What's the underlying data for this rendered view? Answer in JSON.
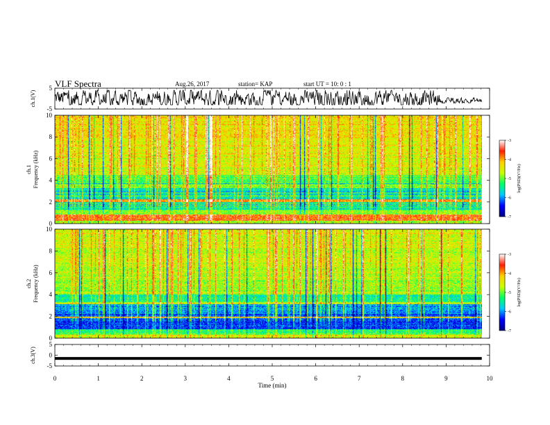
{
  "header": {
    "title": "VLF Spectra",
    "date": "Aug.26, 2017",
    "station": "station= KAP",
    "start": "start  UT =   10: 0  : 1"
  },
  "chart_data": [
    {
      "type": "line",
      "name": "ch1-waveform",
      "ylabel": "ch.1(V)",
      "ylim": [
        -5,
        5
      ],
      "yticks": [
        "5",
        "-5"
      ],
      "xlim": [
        0,
        10
      ],
      "y_range_observed": [
        -3,
        4
      ]
    },
    {
      "type": "heatmap",
      "name": "ch1-spectrogram",
      "ylabel": "ch.1\nFrequency  (kHz)",
      "ylim": [
        0,
        10
      ],
      "yticks": [
        "10",
        "8",
        "6",
        "4",
        "2",
        "0"
      ],
      "xlim": [
        0,
        10
      ],
      "colorbar": {
        "label": "log(PSD)(V²/Hz)",
        "range": [
          -7,
          -3
        ],
        "ticks": [
          "-3",
          "-4",
          "-5",
          "-6",
          "-7"
        ],
        "colors": [
          "#000080",
          "#0000ff",
          "#00c8ff",
          "#00ff66",
          "#c8ff00",
          "#ffd000",
          "#ff2000",
          "#ffffff"
        ]
      },
      "features": {
        "strong_band_khz": [
          0.2,
          0.8
        ],
        "line_khz": [
          2.0,
          2.3,
          5.5
        ],
        "high_energy_above_khz": 4.5
      }
    },
    {
      "type": "heatmap",
      "name": "ch2-spectrogram",
      "ylabel": "ch.2\nFrequency  (kHz)",
      "ylim": [
        0,
        10
      ],
      "yticks": [
        "10",
        "8",
        "6",
        "4",
        "2",
        "0"
      ],
      "xlim": [
        0,
        10
      ],
      "colorbar": {
        "label": "log(PSD)(V²/Hz)",
        "range": [
          -7,
          -3
        ],
        "ticks": [
          "-3",
          "-4",
          "-5",
          "-6",
          "-7"
        ],
        "colors": [
          "#000080",
          "#0000ff",
          "#00c8ff",
          "#00ff66",
          "#c8ff00",
          "#ffd000",
          "#ff2000",
          "#ffffff"
        ]
      },
      "features": {
        "blue_band_khz": [
          0.8,
          2.2
        ],
        "line_khz": [
          2.0,
          3.2
        ],
        "high_energy_above_khz": 4.0
      }
    },
    {
      "type": "line",
      "name": "ch3-waveform",
      "ylabel": "ch.3(V)",
      "ylim": [
        -5,
        5
      ],
      "yticks": [
        "5",
        "0",
        "-5"
      ],
      "xlim": [
        0,
        10
      ],
      "constant_value": -1.5
    }
  ],
  "xaxis": {
    "label": "Time  (min)",
    "ticks": [
      "0",
      "1",
      "2",
      "3",
      "4",
      "5",
      "6",
      "7",
      "8",
      "9",
      "10"
    ],
    "data_end": 9.82
  }
}
